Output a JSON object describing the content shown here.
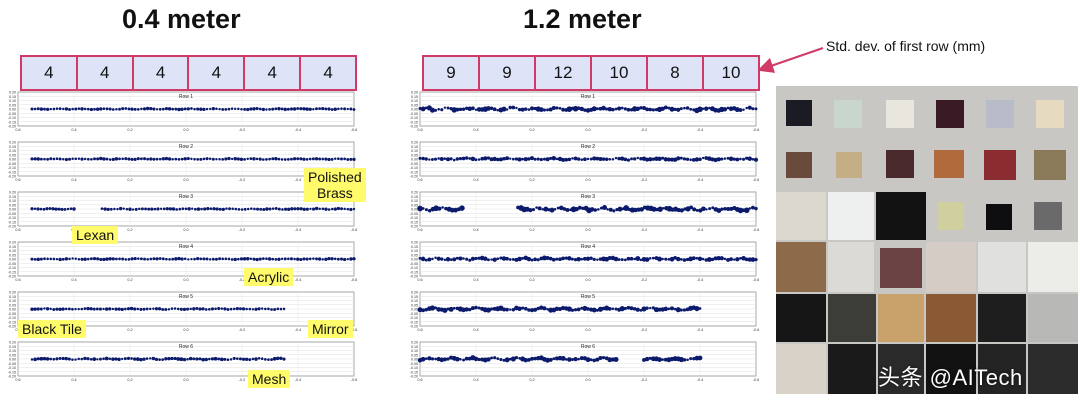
{
  "headings": {
    "left": "0.4 meter",
    "right": "1.2 meter"
  },
  "std_dev": {
    "label": "Std. dev. of first row (mm)",
    "left": [
      "4",
      "4",
      "4",
      "4",
      "4",
      "4"
    ],
    "right": [
      "9",
      "9",
      "12",
      "10",
      "8",
      "10"
    ]
  },
  "material_labels": {
    "polished_brass": "Polished\nBrass",
    "lexan": "Lexan",
    "acrylic": "Acrylic",
    "black_tile": "Black Tile",
    "mirror": "Mirror",
    "mesh": "Mesh"
  },
  "watermark": "头条 @AITech",
  "chart_data": [
    {
      "type": "scatter",
      "title": "0.4 meter",
      "x_ticks": [
        "0.6",
        "0.4",
        "0.2",
        "0.0",
        "-0.2",
        "-0.4",
        "-0.6"
      ],
      "y_ticks": [
        "0.20",
        "0.15",
        "0.10",
        "0.05",
        "0.00",
        "-0.05",
        "-0.10",
        "-0.15",
        "-0.20"
      ],
      "xlim": [
        0.6,
        -0.6
      ],
      "ylim": [
        -0.2,
        0.2
      ],
      "grid": true,
      "series": [
        {
          "name": "Row 1",
          "segments": [
            [
              0.55,
              -0.6
            ]
          ],
          "spread": 0.006
        },
        {
          "name": "Row 2",
          "segments": [
            [
              0.55,
              -0.6
            ]
          ],
          "spread": 0.006
        },
        {
          "name": "Row 3",
          "segments": [
            [
              0.55,
              0.4
            ],
            [
              0.3,
              -0.6
            ]
          ],
          "spread": 0.006
        },
        {
          "name": "Row 4",
          "segments": [
            [
              0.55,
              -0.6
            ]
          ],
          "spread": 0.006
        },
        {
          "name": "Row 5",
          "segments": [
            [
              0.55,
              -0.35
            ]
          ],
          "spread": 0.006
        },
        {
          "name": "Row 6",
          "segments": [
            [
              0.55,
              -0.35
            ]
          ],
          "spread": 0.008
        }
      ]
    },
    {
      "type": "scatter",
      "title": "1.2 meter",
      "x_ticks": [
        "0.6",
        "0.4",
        "0.2",
        "0.0",
        "-0.2",
        "-0.4",
        "-0.6"
      ],
      "y_ticks": [
        "0.20",
        "0.15",
        "0.10",
        "0.05",
        "0.00",
        "-0.05",
        "-0.10",
        "-0.15",
        "-0.20"
      ],
      "xlim": [
        0.6,
        -0.6
      ],
      "ylim": [
        -0.2,
        0.2
      ],
      "grid": true,
      "series": [
        {
          "name": "Row 1",
          "segments": [
            [
              0.6,
              -0.6
            ]
          ],
          "spread": 0.018
        },
        {
          "name": "Row 2",
          "segments": [
            [
              0.6,
              -0.6
            ]
          ],
          "spread": 0.012
        },
        {
          "name": "Row 3",
          "segments": [
            [
              0.6,
              0.45
            ],
            [
              0.25,
              -0.6
            ]
          ],
          "spread": 0.02
        },
        {
          "name": "Row 4",
          "segments": [
            [
              0.6,
              -0.6
            ]
          ],
          "spread": 0.014
        },
        {
          "name": "Row 5",
          "segments": [
            [
              0.6,
              -0.4
            ]
          ],
          "spread": 0.016
        },
        {
          "name": "Row 6",
          "segments": [
            [
              0.6,
              -0.1
            ],
            [
              -0.2,
              -0.4
            ]
          ],
          "spread": 0.016
        }
      ]
    }
  ],
  "colors": {
    "data_points": "#0c1a6b",
    "box_border": "#d03a66",
    "box_fill": "#dfe3f8",
    "highlight": "#fffb6b"
  }
}
